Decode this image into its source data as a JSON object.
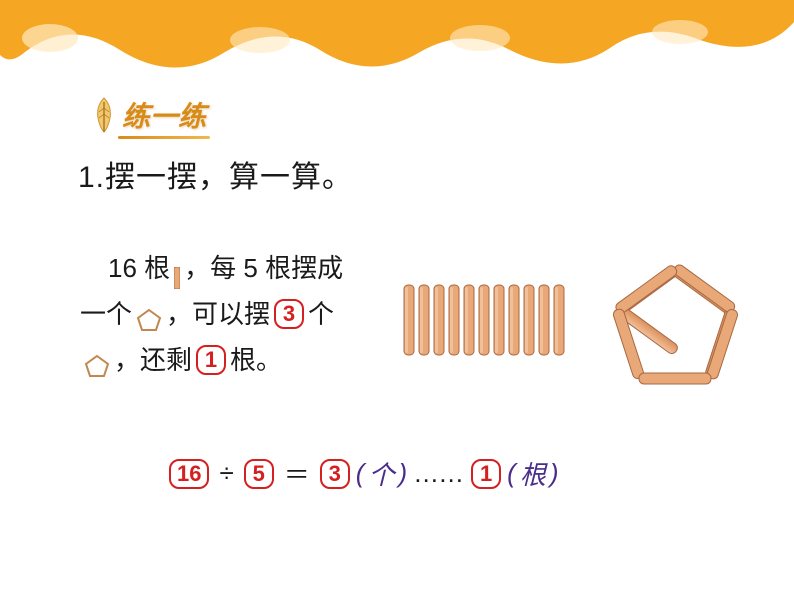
{
  "banner": {
    "fill": "#f5a623",
    "highlight": "#ffe9c0"
  },
  "section": {
    "title": "练一练",
    "title_color": "#d98b1a",
    "feather_color": "#e0a030"
  },
  "question": {
    "number": "1.",
    "text": "摆一摆，算一算。"
  },
  "problem": {
    "total_sticks": 16,
    "per_shape": 5,
    "shapes_made": 3,
    "remainder": 1,
    "text_parts": {
      "p1a": "16 根",
      "p1b": "，每 5 根摆成",
      "p2a": "一个",
      "p2b": "，可以摆",
      "p2c": "个",
      "p3a": "，还剩",
      "p3b": "根。"
    }
  },
  "equation": {
    "dividend": 16,
    "divisor": 5,
    "quotient": 3,
    "remainder": 1,
    "unit_quotient": "个",
    "unit_remainder": "根",
    "divide_sign": "÷",
    "equals_sign": "＝",
    "dots": "……",
    "paren_open": "(",
    "paren_close": ")"
  },
  "colors": {
    "answer_border": "#d42020",
    "answer_text": "#d42020",
    "stick_fill": "#e8a878",
    "stick_stroke": "#a86840",
    "pentagon_outline": "#e8a878",
    "pentagon_stroke": "#a86840",
    "mini_pentagon_stroke": "#c08850",
    "text": "#1a1a1a",
    "unit_text": "#4a2d8a"
  },
  "illustration": {
    "stick_count": 11,
    "stick_width": 10,
    "stick_gap": 5,
    "stick_height": 70
  }
}
